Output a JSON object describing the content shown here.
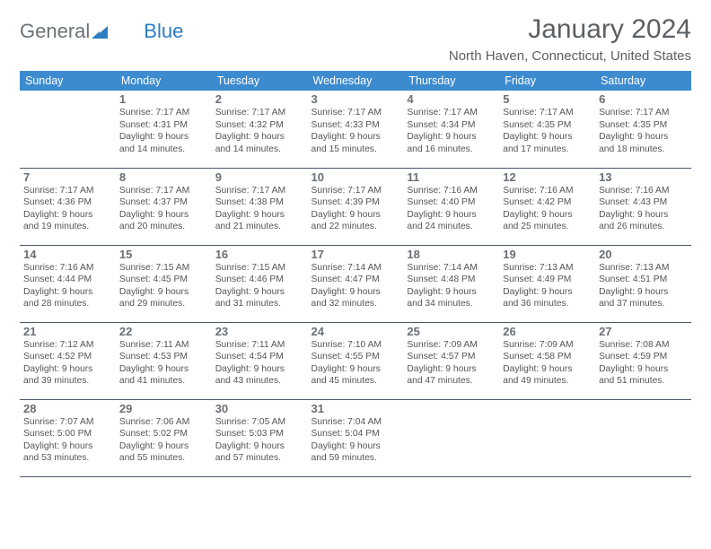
{
  "logo": {
    "text1": "General",
    "text2": "Blue"
  },
  "title": "January 2024",
  "location": "North Haven, Connecticut, United States",
  "colors": {
    "header_bg": "#3d8bcf",
    "header_text": "#ffffff",
    "row_border": "#4a5a6b",
    "logo_gray": "#6b7278",
    "logo_blue": "#2b7dc3",
    "text_primary": "#5a5f63",
    "cell_text": "#555555",
    "background": "#ffffff"
  },
  "typography": {
    "title_fontsize": 30,
    "location_fontsize": 15,
    "dayheader_fontsize": 12.5,
    "daynum_fontsize": 13,
    "cell_fontsize": 10.3
  },
  "day_headers": [
    "Sunday",
    "Monday",
    "Tuesday",
    "Wednesday",
    "Thursday",
    "Friday",
    "Saturday"
  ],
  "weeks": [
    {
      "cells": [
        {
          "blank": true
        },
        {
          "num": "1",
          "sunrise": "Sunrise: 7:17 AM",
          "sunset": "Sunset: 4:31 PM",
          "daylight1": "Daylight: 9 hours",
          "daylight2": "and 14 minutes."
        },
        {
          "num": "2",
          "sunrise": "Sunrise: 7:17 AM",
          "sunset": "Sunset: 4:32 PM",
          "daylight1": "Daylight: 9 hours",
          "daylight2": "and 14 minutes."
        },
        {
          "num": "3",
          "sunrise": "Sunrise: 7:17 AM",
          "sunset": "Sunset: 4:33 PM",
          "daylight1": "Daylight: 9 hours",
          "daylight2": "and 15 minutes."
        },
        {
          "num": "4",
          "sunrise": "Sunrise: 7:17 AM",
          "sunset": "Sunset: 4:34 PM",
          "daylight1": "Daylight: 9 hours",
          "daylight2": "and 16 minutes."
        },
        {
          "num": "5",
          "sunrise": "Sunrise: 7:17 AM",
          "sunset": "Sunset: 4:35 PM",
          "daylight1": "Daylight: 9 hours",
          "daylight2": "and 17 minutes."
        },
        {
          "num": "6",
          "sunrise": "Sunrise: 7:17 AM",
          "sunset": "Sunset: 4:35 PM",
          "daylight1": "Daylight: 9 hours",
          "daylight2": "and 18 minutes."
        }
      ]
    },
    {
      "cells": [
        {
          "num": "7",
          "sunrise": "Sunrise: 7:17 AM",
          "sunset": "Sunset: 4:36 PM",
          "daylight1": "Daylight: 9 hours",
          "daylight2": "and 19 minutes."
        },
        {
          "num": "8",
          "sunrise": "Sunrise: 7:17 AM",
          "sunset": "Sunset: 4:37 PM",
          "daylight1": "Daylight: 9 hours",
          "daylight2": "and 20 minutes."
        },
        {
          "num": "9",
          "sunrise": "Sunrise: 7:17 AM",
          "sunset": "Sunset: 4:38 PM",
          "daylight1": "Daylight: 9 hours",
          "daylight2": "and 21 minutes."
        },
        {
          "num": "10",
          "sunrise": "Sunrise: 7:17 AM",
          "sunset": "Sunset: 4:39 PM",
          "daylight1": "Daylight: 9 hours",
          "daylight2": "and 22 minutes."
        },
        {
          "num": "11",
          "sunrise": "Sunrise: 7:16 AM",
          "sunset": "Sunset: 4:40 PM",
          "daylight1": "Daylight: 9 hours",
          "daylight2": "and 24 minutes."
        },
        {
          "num": "12",
          "sunrise": "Sunrise: 7:16 AM",
          "sunset": "Sunset: 4:42 PM",
          "daylight1": "Daylight: 9 hours",
          "daylight2": "and 25 minutes."
        },
        {
          "num": "13",
          "sunrise": "Sunrise: 7:16 AM",
          "sunset": "Sunset: 4:43 PM",
          "daylight1": "Daylight: 9 hours",
          "daylight2": "and 26 minutes."
        }
      ]
    },
    {
      "cells": [
        {
          "num": "14",
          "sunrise": "Sunrise: 7:16 AM",
          "sunset": "Sunset: 4:44 PM",
          "daylight1": "Daylight: 9 hours",
          "daylight2": "and 28 minutes."
        },
        {
          "num": "15",
          "sunrise": "Sunrise: 7:15 AM",
          "sunset": "Sunset: 4:45 PM",
          "daylight1": "Daylight: 9 hours",
          "daylight2": "and 29 minutes."
        },
        {
          "num": "16",
          "sunrise": "Sunrise: 7:15 AM",
          "sunset": "Sunset: 4:46 PM",
          "daylight1": "Daylight: 9 hours",
          "daylight2": "and 31 minutes."
        },
        {
          "num": "17",
          "sunrise": "Sunrise: 7:14 AM",
          "sunset": "Sunset: 4:47 PM",
          "daylight1": "Daylight: 9 hours",
          "daylight2": "and 32 minutes."
        },
        {
          "num": "18",
          "sunrise": "Sunrise: 7:14 AM",
          "sunset": "Sunset: 4:48 PM",
          "daylight1": "Daylight: 9 hours",
          "daylight2": "and 34 minutes."
        },
        {
          "num": "19",
          "sunrise": "Sunrise: 7:13 AM",
          "sunset": "Sunset: 4:49 PM",
          "daylight1": "Daylight: 9 hours",
          "daylight2": "and 36 minutes."
        },
        {
          "num": "20",
          "sunrise": "Sunrise: 7:13 AM",
          "sunset": "Sunset: 4:51 PM",
          "daylight1": "Daylight: 9 hours",
          "daylight2": "and 37 minutes."
        }
      ]
    },
    {
      "cells": [
        {
          "num": "21",
          "sunrise": "Sunrise: 7:12 AM",
          "sunset": "Sunset: 4:52 PM",
          "daylight1": "Daylight: 9 hours",
          "daylight2": "and 39 minutes."
        },
        {
          "num": "22",
          "sunrise": "Sunrise: 7:11 AM",
          "sunset": "Sunset: 4:53 PM",
          "daylight1": "Daylight: 9 hours",
          "daylight2": "and 41 minutes."
        },
        {
          "num": "23",
          "sunrise": "Sunrise: 7:11 AM",
          "sunset": "Sunset: 4:54 PM",
          "daylight1": "Daylight: 9 hours",
          "daylight2": "and 43 minutes."
        },
        {
          "num": "24",
          "sunrise": "Sunrise: 7:10 AM",
          "sunset": "Sunset: 4:55 PM",
          "daylight1": "Daylight: 9 hours",
          "daylight2": "and 45 minutes."
        },
        {
          "num": "25",
          "sunrise": "Sunrise: 7:09 AM",
          "sunset": "Sunset: 4:57 PM",
          "daylight1": "Daylight: 9 hours",
          "daylight2": "and 47 minutes."
        },
        {
          "num": "26",
          "sunrise": "Sunrise: 7:09 AM",
          "sunset": "Sunset: 4:58 PM",
          "daylight1": "Daylight: 9 hours",
          "daylight2": "and 49 minutes."
        },
        {
          "num": "27",
          "sunrise": "Sunrise: 7:08 AM",
          "sunset": "Sunset: 4:59 PM",
          "daylight1": "Daylight: 9 hours",
          "daylight2": "and 51 minutes."
        }
      ]
    },
    {
      "cells": [
        {
          "num": "28",
          "sunrise": "Sunrise: 7:07 AM",
          "sunset": "Sunset: 5:00 PM",
          "daylight1": "Daylight: 9 hours",
          "daylight2": "and 53 minutes."
        },
        {
          "num": "29",
          "sunrise": "Sunrise: 7:06 AM",
          "sunset": "Sunset: 5:02 PM",
          "daylight1": "Daylight: 9 hours",
          "daylight2": "and 55 minutes."
        },
        {
          "num": "30",
          "sunrise": "Sunrise: 7:05 AM",
          "sunset": "Sunset: 5:03 PM",
          "daylight1": "Daylight: 9 hours",
          "daylight2": "and 57 minutes."
        },
        {
          "num": "31",
          "sunrise": "Sunrise: 7:04 AM",
          "sunset": "Sunset: 5:04 PM",
          "daylight1": "Daylight: 9 hours",
          "daylight2": "and 59 minutes."
        },
        {
          "blank": true
        },
        {
          "blank": true
        },
        {
          "blank": true
        }
      ]
    }
  ]
}
